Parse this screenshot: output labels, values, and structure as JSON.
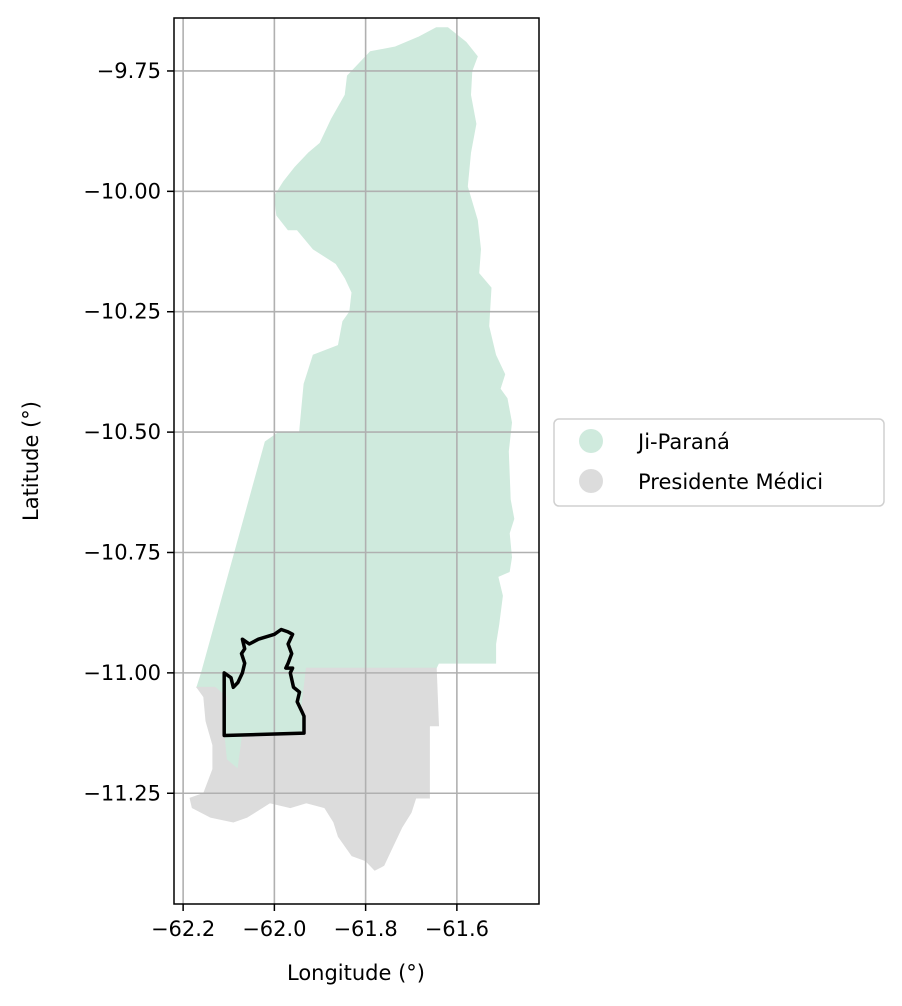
{
  "chart_data": {
    "type": "map",
    "xlabel": "Longitude (°)",
    "ylabel": "Latitude (°)",
    "xlim": [
      -62.22,
      -61.42
    ],
    "ylim": [
      -11.48,
      -9.64
    ],
    "x_ticks": [
      -62.2,
      -62.0,
      -61.8,
      -61.6
    ],
    "x_tick_labels": [
      "−62.2",
      "−62.0",
      "−61.8",
      "−61.6"
    ],
    "y_ticks": [
      -9.75,
      -10.0,
      -10.25,
      -10.5,
      -10.75,
      -11.0,
      -11.25
    ],
    "y_tick_labels": [
      "−9.75",
      "−10.00",
      "−10.25",
      "−10.50",
      "−10.75",
      "−11.00",
      "−11.25"
    ],
    "grid": true,
    "legend_position": "right-outside",
    "regions": [
      {
        "name": "Ji-Paraná",
        "color": "#cfeadd",
        "polygon": [
          [
            -61.79,
            -9.71
          ],
          [
            -61.735,
            -9.7
          ],
          [
            -61.685,
            -9.68
          ],
          [
            -61.645,
            -9.66
          ],
          [
            -61.62,
            -9.66
          ],
          [
            -61.58,
            -9.69
          ],
          [
            -61.555,
            -9.72
          ],
          [
            -61.567,
            -9.75
          ],
          [
            -61.57,
            -9.8
          ],
          [
            -61.558,
            -9.86
          ],
          [
            -61.57,
            -9.92
          ],
          [
            -61.577,
            -9.99
          ],
          [
            -61.555,
            -10.06
          ],
          [
            -61.548,
            -10.12
          ],
          [
            -61.552,
            -10.17
          ],
          [
            -61.525,
            -10.2
          ],
          [
            -61.53,
            -10.28
          ],
          [
            -61.515,
            -10.34
          ],
          [
            -61.495,
            -10.38
          ],
          [
            -61.505,
            -10.41
          ],
          [
            -61.49,
            -10.43
          ],
          [
            -61.48,
            -10.48
          ],
          [
            -61.487,
            -10.54
          ],
          [
            -61.483,
            -10.64
          ],
          [
            -61.475,
            -10.68
          ],
          [
            -61.485,
            -10.71
          ],
          [
            -61.48,
            -10.76
          ],
          [
            -61.485,
            -10.79
          ],
          [
            -61.51,
            -10.8
          ],
          [
            -61.5,
            -10.84
          ],
          [
            -61.508,
            -10.9
          ],
          [
            -61.515,
            -10.94
          ],
          [
            -61.515,
            -10.98
          ],
          [
            -61.64,
            -10.98
          ],
          [
            -61.645,
            -10.99
          ],
          [
            -61.93,
            -10.99
          ],
          [
            -61.94,
            -11.07
          ],
          [
            -61.93,
            -11.1
          ],
          [
            -61.935,
            -11.13
          ],
          [
            -62.07,
            -11.13
          ],
          [
            -62.08,
            -11.2
          ],
          [
            -62.105,
            -11.18
          ],
          [
            -62.11,
            -11.13
          ],
          [
            -62.105,
            -11.05
          ],
          [
            -62.13,
            -11.03
          ],
          [
            -62.17,
            -11.03
          ],
          [
            -62.16,
            -11.0
          ],
          [
            -62.02,
            -10.52
          ],
          [
            -61.99,
            -10.5
          ],
          [
            -61.945,
            -10.5
          ],
          [
            -61.935,
            -10.4
          ],
          [
            -61.915,
            -10.34
          ],
          [
            -61.86,
            -10.32
          ],
          [
            -61.85,
            -10.27
          ],
          [
            -61.835,
            -10.25
          ],
          [
            -61.83,
            -10.21
          ],
          [
            -61.845,
            -10.18
          ],
          [
            -61.865,
            -10.15
          ],
          [
            -61.915,
            -10.12
          ],
          [
            -61.95,
            -10.08
          ],
          [
            -61.97,
            -10.08
          ],
          [
            -61.995,
            -10.05
          ],
          [
            -62.0,
            -10.01
          ],
          [
            -61.98,
            -9.98
          ],
          [
            -61.955,
            -9.95
          ],
          [
            -61.925,
            -9.92
          ],
          [
            -61.9,
            -9.9
          ],
          [
            -61.875,
            -9.85
          ],
          [
            -61.845,
            -9.8
          ],
          [
            -61.84,
            -9.76
          ]
        ]
      },
      {
        "name": "Presidente Médici",
        "color": "#dcdcdc",
        "polygon": [
          [
            -61.93,
            -10.99
          ],
          [
            -61.645,
            -10.99
          ],
          [
            -61.64,
            -11.11
          ],
          [
            -61.66,
            -11.11
          ],
          [
            -61.66,
            -11.26
          ],
          [
            -61.69,
            -11.26
          ],
          [
            -61.7,
            -11.29
          ],
          [
            -61.72,
            -11.32
          ],
          [
            -61.745,
            -11.37
          ],
          [
            -61.76,
            -11.4
          ],
          [
            -61.78,
            -11.41
          ],
          [
            -61.8,
            -11.39
          ],
          [
            -61.83,
            -11.38
          ],
          [
            -61.86,
            -11.34
          ],
          [
            -61.87,
            -11.31
          ],
          [
            -61.89,
            -11.28
          ],
          [
            -61.93,
            -11.27
          ],
          [
            -61.965,
            -11.28
          ],
          [
            -62.01,
            -11.27
          ],
          [
            -62.06,
            -11.3
          ],
          [
            -62.09,
            -11.31
          ],
          [
            -62.14,
            -11.3
          ],
          [
            -62.16,
            -11.29
          ],
          [
            -62.18,
            -11.28
          ],
          [
            -62.185,
            -11.26
          ],
          [
            -62.155,
            -11.25
          ],
          [
            -62.135,
            -11.2
          ],
          [
            -62.135,
            -11.15
          ],
          [
            -62.15,
            -11.1
          ],
          [
            -62.155,
            -11.05
          ],
          [
            -62.17,
            -11.03
          ],
          [
            -62.13,
            -11.03
          ],
          [
            -62.105,
            -11.05
          ],
          [
            -62.11,
            -11.13
          ],
          [
            -62.105,
            -11.18
          ],
          [
            -62.08,
            -11.2
          ],
          [
            -62.07,
            -11.13
          ],
          [
            -61.935,
            -11.13
          ],
          [
            -61.93,
            -11.1
          ],
          [
            -61.94,
            -11.07
          ]
        ]
      }
    ],
    "outline": {
      "color": "#000000",
      "polygon": [
        [
          -62.11,
          -11.0
        ],
        [
          -62.095,
          -11.01
        ],
        [
          -62.09,
          -11.03
        ],
        [
          -62.08,
          -11.02
        ],
        [
          -62.07,
          -11.0
        ],
        [
          -62.065,
          -10.98
        ],
        [
          -62.072,
          -10.96
        ],
        [
          -62.065,
          -10.95
        ],
        [
          -62.07,
          -10.93
        ],
        [
          -62.055,
          -10.94
        ],
        [
          -62.035,
          -10.93
        ],
        [
          -62.0,
          -10.92
        ],
        [
          -61.985,
          -10.91
        ],
        [
          -61.97,
          -10.915
        ],
        [
          -61.96,
          -10.92
        ],
        [
          -61.97,
          -10.94
        ],
        [
          -61.962,
          -10.96
        ],
        [
          -61.97,
          -10.98
        ],
        [
          -61.975,
          -10.99
        ],
        [
          -61.96,
          -10.99
        ],
        [
          -61.965,
          -11.0
        ],
        [
          -61.958,
          -11.03
        ],
        [
          -61.945,
          -11.04
        ],
        [
          -61.95,
          -11.06
        ],
        [
          -61.94,
          -11.08
        ],
        [
          -61.935,
          -11.09
        ],
        [
          -61.935,
          -11.125
        ],
        [
          -62.11,
          -11.13
        ]
      ]
    }
  },
  "legend": {
    "items": [
      {
        "label": "Ji-Paraná",
        "color": "#cfeadd"
      },
      {
        "label": "Presidente Médici",
        "color": "#dcdcdc"
      }
    ]
  }
}
